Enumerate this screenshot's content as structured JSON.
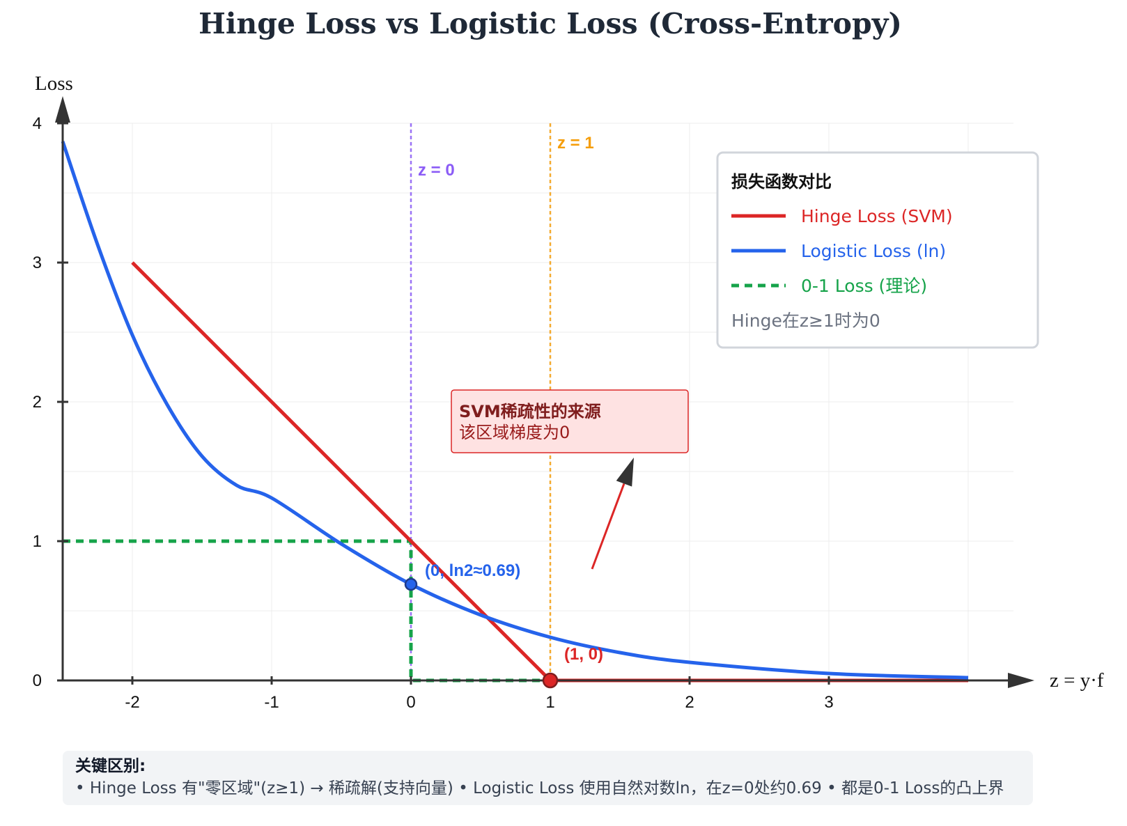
{
  "chart_data": {
    "type": "line",
    "title": "Hinge Loss vs Logistic Loss (Cross-Entropy)",
    "xlabel": "z = y·f",
    "ylabel": "Loss",
    "xlim": [
      -2.5,
      4.5
    ],
    "ylim": [
      0,
      4
    ],
    "x_ticks": [
      "-2",
      "-1",
      "0",
      "1",
      "2",
      "3"
    ],
    "y_ticks": [
      "0",
      "1",
      "2",
      "3",
      "4"
    ],
    "grid": true,
    "series": [
      {
        "name": "Hinge Loss (SVM)",
        "color": "#dc2626",
        "style": "solid",
        "x": [
          -2,
          -1,
          0,
          1,
          2,
          3,
          4
        ],
        "y": [
          3,
          2,
          1,
          0,
          0,
          0,
          0
        ]
      },
      {
        "name": "Logistic Loss (ln)",
        "color": "#2563eb",
        "style": "solid",
        "x": [
          -2.5,
          -2.25,
          -2,
          -1.75,
          -1.5,
          -1.25,
          -1,
          -0.5,
          0,
          0.5,
          1,
          1.5,
          2,
          3,
          4
        ],
        "y": [
          3.87,
          3.13,
          2.48,
          1.98,
          1.61,
          1.4,
          1.31,
          0.98,
          0.69,
          0.47,
          0.31,
          0.2,
          0.13,
          0.05,
          0.02
        ]
      },
      {
        "name": "0-1 Loss (理论)",
        "color": "#16a34a",
        "style": "dashed",
        "x": [
          -2.5,
          0,
          0,
          4
        ],
        "y": [
          1,
          1,
          0,
          0
        ]
      }
    ],
    "vlines": [
      {
        "x": 0,
        "label": "z = 0",
        "color": "#8b5cf6"
      },
      {
        "x": 1,
        "label": "z = 1",
        "color": "#f59e0b"
      }
    ],
    "points": [
      {
        "x": 0,
        "y": 0.69,
        "label": "(0, ln2≈0.69)",
        "color": "#2563eb"
      },
      {
        "x": 1,
        "y": 0,
        "label": "(1, 0)",
        "color": "#dc2626"
      }
    ],
    "legend": {
      "title": "损失函数对比",
      "note": "Hinge在z≥1时为0",
      "placement": "top-right"
    },
    "annotation": {
      "title": "SVM稀疏性的来源",
      "text": "该区域梯度为0",
      "arrow_from": [
        1.3,
        0.8
      ],
      "arrow_to": [
        1.6,
        1.6
      ]
    }
  },
  "footer": {
    "title": "关键区别:",
    "text": "• Hinge Loss 有\"零区域\"(z≥1) → 稀疏解(支持向量) • Logistic Loss 使用自然对数ln，在z=0处约0.69 • 都是0-1 Loss的凸上界"
  }
}
